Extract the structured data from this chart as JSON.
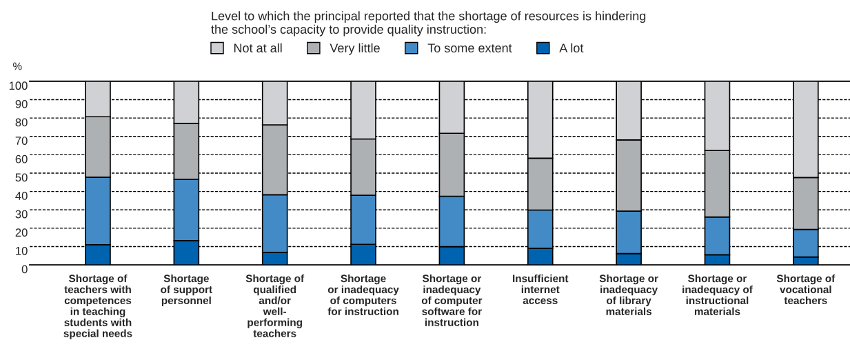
{
  "chart_data": {
    "type": "bar",
    "stacked": true,
    "ylabel": "%",
    "legend_title": "Level to which the principal reported that the shortage of resources is hindering\nthe school’s capacity to provide quality instruction:",
    "legend": "top",
    "categories": [
      "Shortage of\nteachers with\ncompetences\nin teaching\nstudents with\nspecial needs",
      "Shortage\nof support\npersonnel",
      "Shortage of\nqualified\nand/or\nwell-\nperforming\nteachers",
      "Shortage\nor inadequacy\nof computers\nfor instruction",
      "Shortage or\ninadequacy\nof computer\nsoftware for\ninstruction",
      "Insufficient\ninternet\naccess",
      "Shortage or\ninadequacy\nof library\nmaterials",
      "Shortage or\ninadequacy of\ninstructional\nmaterials",
      "Shortage of\nvocational\nteachers"
    ],
    "series": [
      {
        "name": "A lot",
        "color": "#0063b0",
        "values": [
          11.0,
          13.2,
          6.8,
          11.2,
          9.9,
          9.0,
          6.2,
          5.5,
          4.3
        ]
      },
      {
        "name": "To some extent",
        "color": "#428bc7",
        "values": [
          36.8,
          33.4,
          31.4,
          26.7,
          27.5,
          20.9,
          23.1,
          20.6,
          15.0
        ]
      },
      {
        "name": "Very little",
        "color": "#aeb1b4",
        "values": [
          32.9,
          30.5,
          38.1,
          30.7,
          34.3,
          28.2,
          38.8,
          36.2,
          28.3
        ]
      },
      {
        "name": "Not at all",
        "color": "#d0d1d4",
        "values": [
          19.3,
          22.9,
          23.7,
          31.4,
          28.3,
          41.9,
          31.9,
          37.7,
          52.4
        ]
      }
    ],
    "ylim": [
      0,
      100
    ],
    "yticks": [
      0,
      10,
      20,
      30,
      40,
      50,
      60,
      70,
      80,
      90,
      100
    ],
    "grid": "y"
  }
}
